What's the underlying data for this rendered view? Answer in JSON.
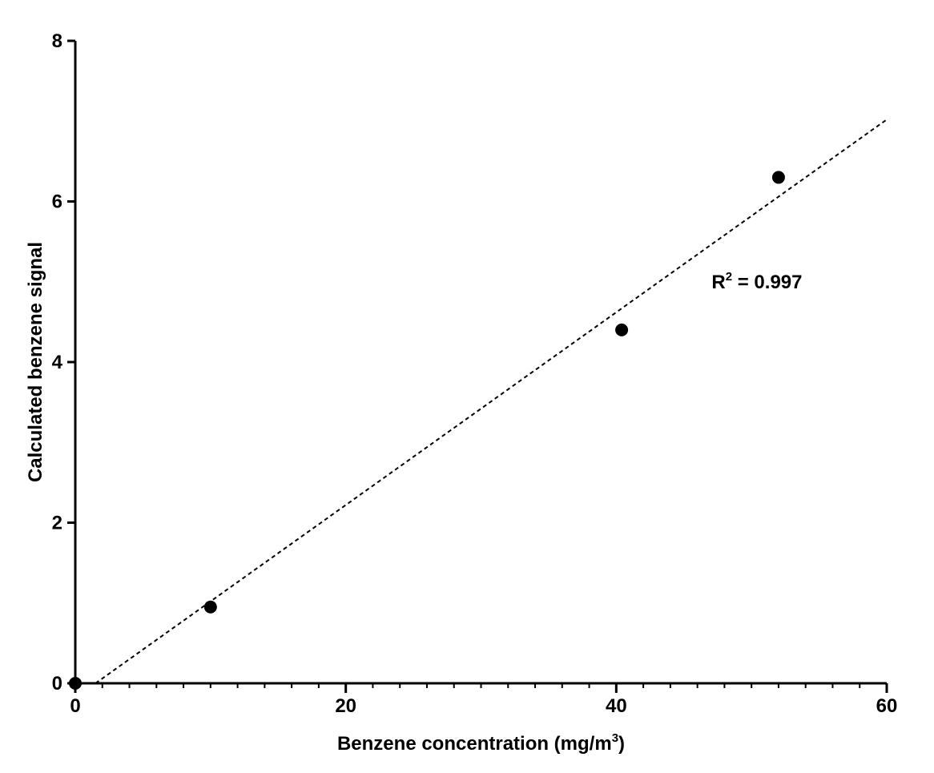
{
  "chart_data": {
    "type": "scatter",
    "xlabel": {
      "main": "Benzene concentration (mg/m",
      "sup": "3",
      "tail": ")"
    },
    "ylabel": "Calculated benzene signal",
    "xlim": [
      0,
      60
    ],
    "ylim": [
      0,
      8
    ],
    "x_ticks": [
      0,
      20,
      40,
      60
    ],
    "y_ticks": [
      0,
      2,
      4,
      6,
      8
    ],
    "x_minor_step": 2,
    "points": [
      {
        "x": 0,
        "y": 0
      },
      {
        "x": 10,
        "y": 0.95
      },
      {
        "x": 40.4,
        "y": 4.4
      },
      {
        "x": 52,
        "y": 6.3
      }
    ],
    "fit_line": {
      "style": "dashed",
      "x": [
        1.5,
        60
      ],
      "y": [
        0,
        7.02
      ]
    },
    "annotation": {
      "prefix": "R",
      "sup": "2",
      "suffix": " = 0.997",
      "x": 48,
      "y": 5.0
    },
    "grid": false,
    "legend": "none",
    "colors": {
      "marker": "#000000",
      "line": "#000000",
      "axis": "#000000"
    }
  }
}
